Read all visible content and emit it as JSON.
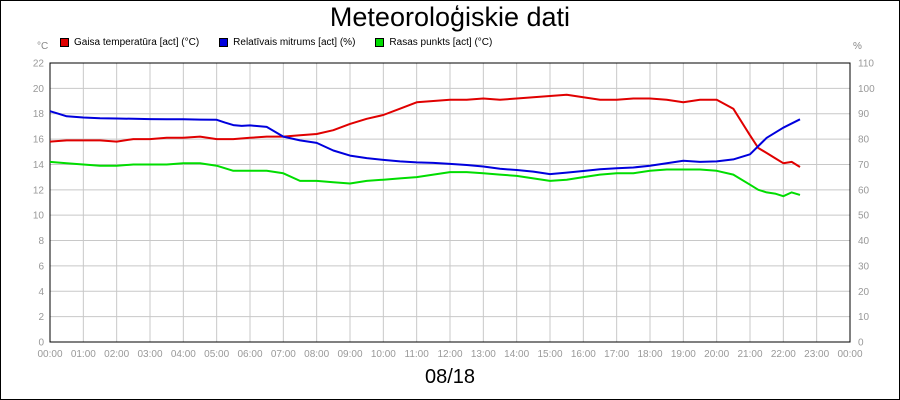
{
  "chart_data": {
    "type": "line",
    "title": "Meteoroloģiskie dati",
    "subtitle": "08/18",
    "y_left_unit": "°C",
    "y_right_unit": "%",
    "ylim_left": [
      0,
      22
    ],
    "ylim_right": [
      0,
      110
    ],
    "left_ticks": [
      0,
      2,
      4,
      6,
      8,
      10,
      12,
      14,
      16,
      18,
      20,
      22
    ],
    "right_ticks": [
      0,
      10,
      20,
      30,
      40,
      50,
      60,
      70,
      80,
      90,
      100,
      110
    ],
    "x_ticks": [
      "00:00",
      "01:00",
      "02:00",
      "03:00",
      "04:00",
      "05:00",
      "06:00",
      "07:00",
      "08:00",
      "09:00",
      "10:00",
      "11:00",
      "12:00",
      "13:00",
      "14:00",
      "15:00",
      "16:00",
      "17:00",
      "18:00",
      "19:00",
      "20:00",
      "21:00",
      "22:00",
      "23:00",
      "00:00"
    ],
    "grid": true,
    "legend_position": "top-left",
    "series": [
      {
        "name": "Gaisa temperatūra [act] (°C)",
        "axis": "left",
        "color": "#e00000",
        "x": [
          0,
          0.5,
          1,
          1.5,
          2,
          2.5,
          3,
          3.5,
          4,
          4.5,
          5,
          5.5,
          6,
          6.5,
          7,
          7.5,
          8,
          8.5,
          9,
          9.5,
          10,
          10.5,
          11,
          11.5,
          12,
          12.5,
          13,
          13.5,
          14,
          14.5,
          15,
          15.5,
          16,
          16.5,
          17,
          17.5,
          18,
          18.5,
          19,
          19.5,
          20,
          20.5,
          21,
          21.25,
          21.5,
          21.75,
          22,
          22.25,
          22.5
        ],
        "y": [
          15.8,
          15.9,
          15.9,
          15.9,
          15.8,
          16.0,
          16.0,
          16.1,
          16.1,
          16.2,
          16.0,
          16.0,
          16.1,
          16.2,
          16.2,
          16.3,
          16.4,
          16.7,
          17.2,
          17.6,
          17.9,
          18.4,
          18.9,
          19.0,
          19.1,
          19.1,
          19.2,
          19.1,
          19.2,
          19.3,
          19.4,
          19.5,
          19.3,
          19.1,
          19.1,
          19.2,
          19.2,
          19.1,
          18.9,
          19.1,
          19.1,
          18.4,
          16.3,
          15.3,
          14.9,
          14.5,
          14.1,
          14.2,
          13.8
        ]
      },
      {
        "name": "Relatīvais mitrums [act] (%)",
        "axis": "right",
        "color": "#0000dd",
        "x": [
          0,
          0.25,
          0.5,
          1,
          1.5,
          2,
          2.5,
          3,
          3.5,
          4,
          4.5,
          5,
          5.25,
          5.5,
          5.75,
          6,
          6.5,
          7,
          7.5,
          8,
          8.5,
          9,
          9.5,
          10,
          10.5,
          11,
          11.5,
          12,
          12.5,
          13,
          13.5,
          14,
          14.5,
          15,
          15.5,
          16,
          16.5,
          17,
          17.5,
          18,
          18.5,
          19,
          19.5,
          20,
          20.5,
          21,
          21.5,
          22,
          22.5
        ],
        "y": [
          91,
          90,
          89,
          88.5,
          88.2,
          88.1,
          88.0,
          87.9,
          87.8,
          87.8,
          87.7,
          87.6,
          86.5,
          85.5,
          85.2,
          85.4,
          84.8,
          81,
          79.5,
          78.5,
          75.5,
          73.5,
          72.5,
          71.8,
          71.2,
          70.8,
          70.6,
          70.2,
          69.8,
          69.2,
          68.3,
          67.8,
          67.2,
          66.2,
          66.8,
          67.4,
          68.1,
          68.5,
          68.8,
          69.5,
          70.5,
          71.5,
          71.0,
          71.2,
          72.0,
          74.0,
          80.5,
          84.5,
          87.8
        ]
      },
      {
        "name": "Rasas punkts [act] (°C)",
        "axis": "left",
        "color": "#00dd00",
        "x": [
          0,
          0.5,
          1,
          1.5,
          2,
          2.5,
          3,
          3.5,
          4,
          4.5,
          5,
          5.5,
          6,
          6.5,
          7,
          7.5,
          8,
          8.5,
          9,
          9.5,
          10,
          10.5,
          11,
          11.5,
          12,
          12.5,
          13,
          13.5,
          14,
          14.5,
          15,
          15.5,
          16,
          16.5,
          17,
          17.5,
          18,
          18.5,
          19,
          19.5,
          20,
          20.5,
          21,
          21.25,
          21.5,
          21.75,
          22,
          22.25,
          22.5
        ],
        "y": [
          14.2,
          14.1,
          14.0,
          13.9,
          13.9,
          14.0,
          14.0,
          14.0,
          14.1,
          14.1,
          13.9,
          13.5,
          13.5,
          13.5,
          13.3,
          12.7,
          12.7,
          12.6,
          12.5,
          12.7,
          12.8,
          12.9,
          13.0,
          13.2,
          13.4,
          13.4,
          13.3,
          13.2,
          13.1,
          12.9,
          12.7,
          12.8,
          13.0,
          13.2,
          13.3,
          13.3,
          13.5,
          13.6,
          13.6,
          13.6,
          13.5,
          13.2,
          12.4,
          12.0,
          11.8,
          11.7,
          11.5,
          11.8,
          11.6
        ]
      }
    ]
  }
}
